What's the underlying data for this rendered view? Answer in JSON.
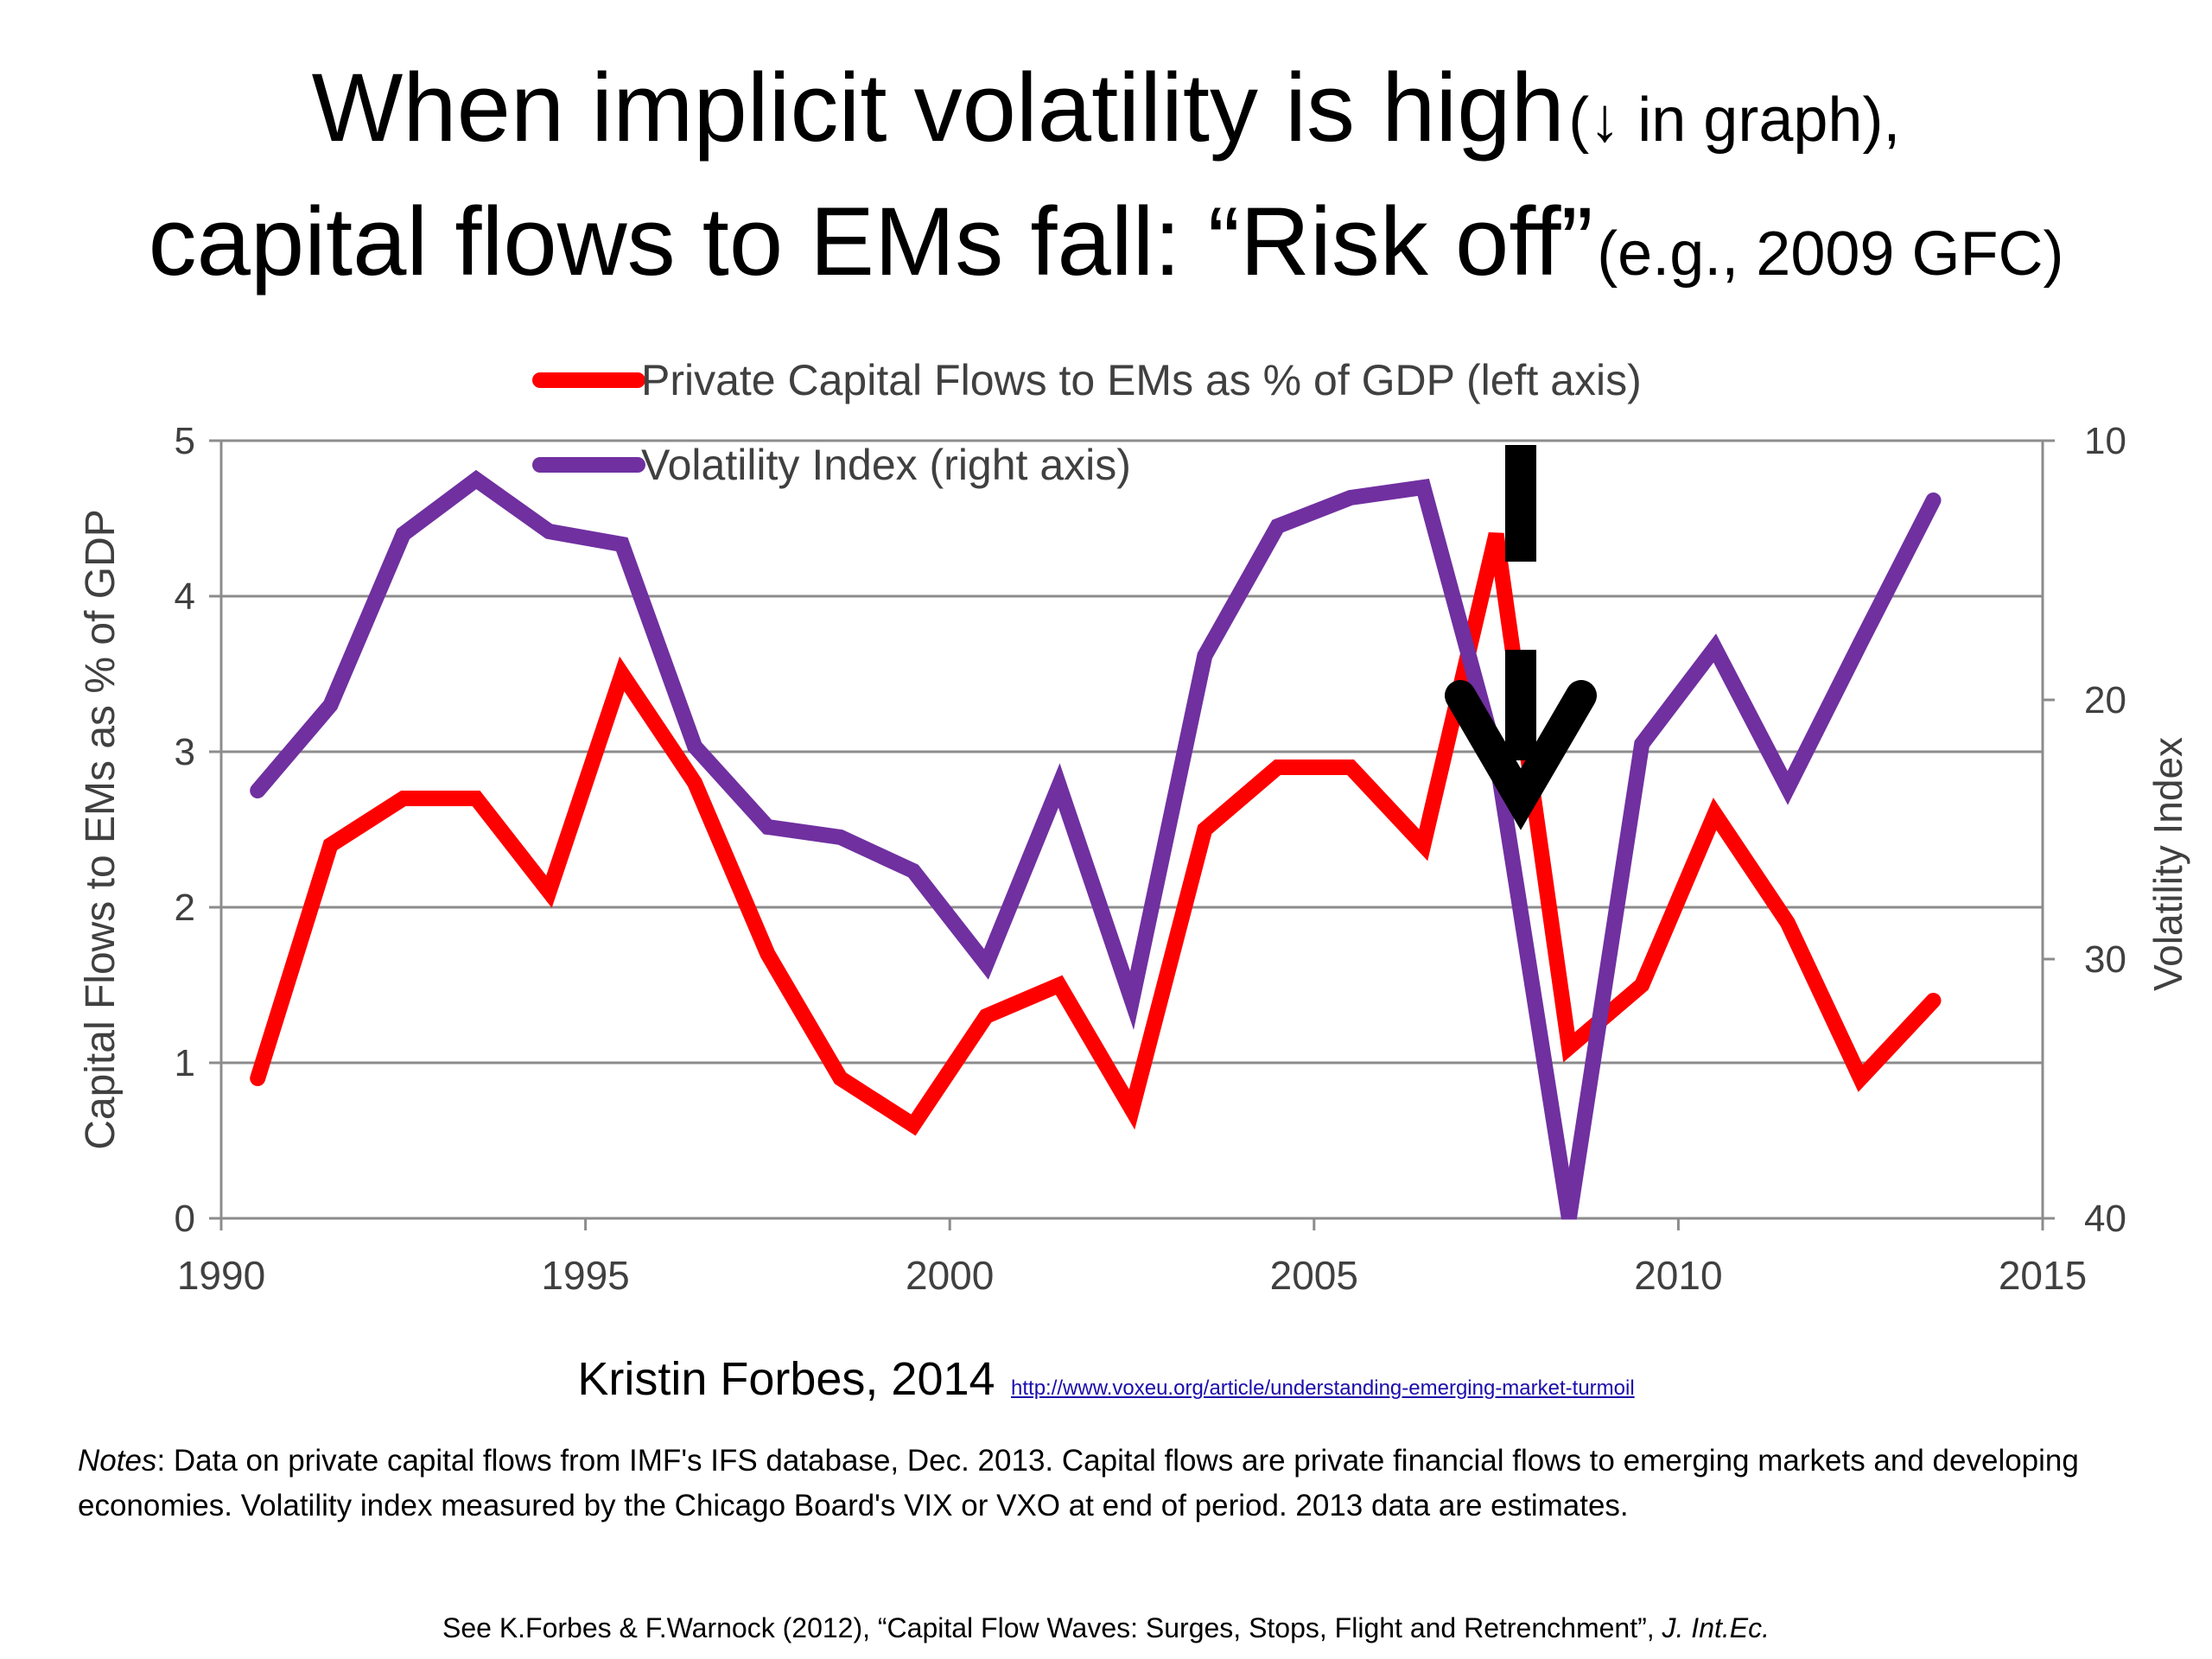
{
  "title": {
    "line1_main": "When implicit volatility is high",
    "line1_note": "(↓ in graph),",
    "line2_main": "capital flows to EMs fall: “Risk off”",
    "line2_note": "(e.g., 2009 GFC)"
  },
  "chart_data": {
    "type": "line",
    "x": [
      1990,
      1991,
      1992,
      1993,
      1994,
      1995,
      1996,
      1997,
      1998,
      1999,
      2000,
      2001,
      2002,
      2003,
      2004,
      2005,
      2006,
      2007,
      2008,
      2009,
      2010,
      2011,
      2012,
      2013
    ],
    "series": [
      {
        "name": "Private Capital Flows to EMs as % of GDP (left axis)",
        "axis": "left",
        "color": "#ff0000",
        "values": [
          0.9,
          2.4,
          2.7,
          2.7,
          2.1,
          3.5,
          2.8,
          1.7,
          0.9,
          0.6,
          1.3,
          1.5,
          0.7,
          2.5,
          2.9,
          2.9,
          2.4,
          4.4,
          1.1,
          1.5,
          2.6,
          1.9,
          0.9,
          1.4
        ]
      },
      {
        "name": "Volatility Index (right axis)",
        "axis": "right",
        "color": "#7030a0",
        "values": [
          23.5,
          20.2,
          13.6,
          11.5,
          13.5,
          14.0,
          21.8,
          24.9,
          25.3,
          26.6,
          30.2,
          23.3,
          31.6,
          18.3,
          13.3,
          12.2,
          11.8,
          22.2,
          40.0,
          21.7,
          18.0,
          23.4,
          17.8,
          12.3
        ]
      }
    ],
    "xlabel": "",
    "ylabel_left": "Capital Flows to EMs as % of GDP",
    "ylabel_right": "Volatility Index",
    "xlim": [
      1990,
      2015
    ],
    "x_ticks": [
      "1990",
      "1995",
      "2000",
      "2005",
      "2010",
      "2015"
    ],
    "ylim_left": [
      0,
      5
    ],
    "y_ticks_left": [
      "0",
      "1",
      "2",
      "3",
      "4",
      "5"
    ],
    "ylim_right": [
      10,
      40
    ],
    "right_axis_inverted": true,
    "y_ticks_right": [
      "10",
      "20",
      "30",
      "40"
    ],
    "grid": true,
    "legend_position": "top-left-inside",
    "annotation": "dashed down arrow over 2009"
  },
  "credit": {
    "author": "Kristin Forbes, 2014",
    "url": "http://www.voxeu.org/article/understanding-emerging-market-turmoil"
  },
  "notes": {
    "label": "Notes",
    "text": ": Data on private capital flows from IMF's IFS database, Dec. 2013. Capital flows are private financial flows to emerging markets and developing economies. Volatility index measured by the Chicago Board's VIX or VXO at end of period. 2013 data are estimates."
  },
  "reference": {
    "text": "See K.Forbes & F.Warnock (2012), “Capital Flow Waves: Surges, Stops, Flight and Retrenchment”, ",
    "journal": "J. Int.Ec."
  }
}
